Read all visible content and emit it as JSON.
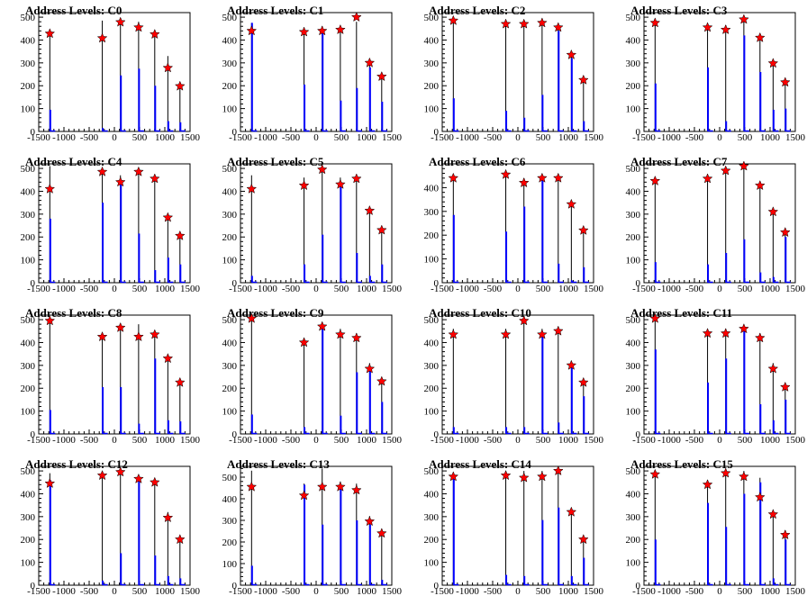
{
  "figure": {
    "xticks": [
      -1500,
      -1000,
      -500,
      0,
      500,
      1000,
      1500
    ],
    "xlim": [
      -1500,
      1500
    ]
  },
  "chart_data": [
    {
      "type": "bar",
      "title": "Address Levels: C0",
      "ylim": [
        0,
        520
      ],
      "yticks": [
        0,
        100,
        200,
        300,
        400,
        500
      ],
      "peaks": [
        -1280,
        -240,
        120,
        480,
        800,
        1060,
        1300
      ],
      "bars_black": [
        430,
        485,
        495,
        480,
        440,
        330,
        200
      ],
      "bars_blue": [
        95,
        15,
        245,
        275,
        200,
        45,
        40
      ],
      "stars": [
        428,
        408,
        478,
        455,
        425,
        278,
        198
      ]
    },
    {
      "type": "bar",
      "title": "Address Levels: C1",
      "ylim": [
        0,
        520
      ],
      "yticks": [
        0,
        100,
        200,
        300,
        400,
        500
      ],
      "peaks": [
        -1280,
        -240,
        120,
        480,
        800,
        1060,
        1300
      ],
      "bars_black": [
        475,
        440,
        460,
        460,
        480,
        300,
        240
      ],
      "bars_blue": [
        475,
        205,
        440,
        135,
        190,
        280,
        130
      ],
      "stars": [
        440,
        435,
        440,
        445,
        500,
        300,
        240
      ]
    },
    {
      "type": "bar",
      "title": "Address Levels: C2",
      "ylim": [
        0,
        520
      ],
      "yticks": [
        0,
        100,
        200,
        300,
        400,
        500
      ],
      "peaks": [
        -1280,
        -240,
        120,
        480,
        800,
        1060,
        1300
      ],
      "bars_black": [
        490,
        470,
        480,
        490,
        460,
        340,
        230
      ],
      "bars_blue": [
        145,
        90,
        60,
        160,
        440,
        320,
        45
      ],
      "stars": [
        485,
        470,
        470,
        475,
        455,
        335,
        225
      ]
    },
    {
      "type": "bar",
      "title": "Address Levels: C3",
      "ylim": [
        0,
        520
      ],
      "yticks": [
        0,
        100,
        200,
        300,
        400,
        500
      ],
      "peaks": [
        -1280,
        -240,
        120,
        480,
        800,
        1060,
        1300
      ],
      "bars_black": [
        480,
        470,
        465,
        490,
        420,
        300,
        225
      ],
      "bars_blue": [
        210,
        280,
        45,
        420,
        260,
        95,
        100
      ],
      "stars": [
        475,
        455,
        445,
        490,
        410,
        298,
        215
      ]
    },
    {
      "type": "bar",
      "title": "Address Levels: C4",
      "ylim": [
        0,
        520
      ],
      "yticks": [
        0,
        100,
        200,
        300,
        400,
        500
      ],
      "peaks": [
        -1280,
        -240,
        120,
        480,
        800,
        1060,
        1300
      ],
      "bars_black": [
        510,
        490,
        470,
        480,
        470,
        300,
        220
      ],
      "bars_blue": [
        280,
        350,
        450,
        215,
        55,
        110,
        80
      ],
      "stars": [
        410,
        485,
        440,
        485,
        455,
        285,
        205
      ]
    },
    {
      "type": "bar",
      "title": "Address Levels: C5",
      "ylim": [
        0,
        520
      ],
      "yticks": [
        0,
        100,
        200,
        300,
        400,
        500
      ],
      "peaks": [
        -1280,
        -240,
        120,
        480,
        800,
        1060,
        1300
      ],
      "bars_black": [
        470,
        460,
        500,
        460,
        470,
        320,
        240
      ],
      "bars_blue": [
        30,
        80,
        210,
        440,
        130,
        30,
        80
      ],
      "stars": [
        410,
        425,
        495,
        430,
        455,
        315,
        230
      ]
    },
    {
      "type": "bar",
      "title": "Address Levels: C6",
      "ylim": [
        0,
        500
      ],
      "yticks": [
        0,
        100,
        200,
        300,
        400
      ],
      "peaks": [
        -1280,
        -240,
        120,
        480,
        800,
        1060,
        1300
      ],
      "bars_black": [
        450,
        460,
        440,
        450,
        450,
        340,
        230
      ],
      "bars_blue": [
        285,
        215,
        320,
        440,
        80,
        10,
        65
      ],
      "stars": [
        440,
        455,
        420,
        440,
        440,
        330,
        220
      ]
    },
    {
      "type": "bar",
      "title": "Address Levels: C7",
      "ylim": [
        0,
        520
      ],
      "yticks": [
        0,
        100,
        200,
        300,
        400,
        500
      ],
      "peaks": [
        -1280,
        -240,
        120,
        480,
        800,
        1060,
        1300
      ],
      "bars_black": [
        460,
        470,
        500,
        510,
        440,
        310,
        225
      ],
      "bars_blue": [
        90,
        80,
        130,
        190,
        45,
        25,
        200
      ],
      "stars": [
        445,
        455,
        490,
        510,
        425,
        310,
        220
      ]
    },
    {
      "type": "bar",
      "title": "Address Levels: C8",
      "ylim": [
        0,
        520
      ],
      "yticks": [
        0,
        100,
        200,
        300,
        400,
        500
      ],
      "peaks": [
        -1280,
        -240,
        120,
        480,
        800,
        1060,
        1300
      ],
      "bars_black": [
        505,
        440,
        480,
        480,
        440,
        330,
        235
      ],
      "bars_blue": [
        105,
        205,
        205,
        45,
        330,
        60,
        55
      ],
      "stars": [
        495,
        425,
        465,
        425,
        435,
        330,
        225
      ]
    },
    {
      "type": "bar",
      "title": "Address Levels: C9",
      "ylim": [
        0,
        520
      ],
      "yticks": [
        0,
        100,
        200,
        300,
        400,
        500
      ],
      "peaks": [
        -1280,
        -240,
        120,
        480,
        800,
        1060,
        1300
      ],
      "bars_black": [
        510,
        420,
        490,
        460,
        440,
        310,
        240
      ],
      "bars_blue": [
        85,
        30,
        460,
        80,
        270,
        280,
        140
      ],
      "stars": [
        505,
        400,
        470,
        435,
        420,
        285,
        230
      ]
    },
    {
      "type": "bar",
      "title": "Address Levels: C10",
      "ylim": [
        0,
        520
      ],
      "yticks": [
        0,
        100,
        200,
        300,
        400,
        500
      ],
      "peaks": [
        -1280,
        -240,
        120,
        480,
        800,
        1060,
        1300
      ],
      "bars_black": [
        460,
        460,
        500,
        460,
        470,
        320,
        240
      ],
      "bars_blue": [
        30,
        30,
        30,
        440,
        50,
        290,
        165
      ],
      "stars": [
        435,
        435,
        495,
        435,
        450,
        300,
        225
      ]
    },
    {
      "type": "bar",
      "title": "Address Levels: C11",
      "ylim": [
        0,
        520
      ],
      "yticks": [
        0,
        100,
        200,
        300,
        400,
        500
      ],
      "peaks": [
        -1280,
        -240,
        120,
        480,
        800,
        1060,
        1300
      ],
      "bars_black": [
        510,
        460,
        460,
        470,
        440,
        310,
        215
      ],
      "bars_blue": [
        370,
        225,
        330,
        460,
        130,
        60,
        150
      ],
      "stars": [
        505,
        440,
        440,
        460,
        420,
        285,
        205
      ]
    },
    {
      "type": "bar",
      "title": "Address Levels: C12",
      "ylim": [
        0,
        520
      ],
      "yticks": [
        0,
        100,
        200,
        300,
        400,
        500
      ],
      "peaks": [
        -1280,
        -240,
        120,
        480,
        800,
        1060,
        1300
      ],
      "bars_black": [
        490,
        480,
        510,
        470,
        460,
        320,
        210
      ],
      "bars_blue": [
        460,
        20,
        140,
        460,
        130,
        40,
        30
      ],
      "stars": [
        445,
        480,
        495,
        465,
        450,
        295,
        200
      ]
    },
    {
      "type": "bar",
      "title": "Address Levels: C13",
      "ylim": [
        0,
        550
      ],
      "yticks": [
        0,
        100,
        200,
        300,
        400,
        500
      ],
      "peaks": [
        -1280,
        -240,
        120,
        480,
        800,
        1060,
        1300
      ],
      "bars_black": [
        530,
        470,
        540,
        480,
        470,
        320,
        260
      ],
      "bars_blue": [
        90,
        465,
        280,
        460,
        300,
        280,
        25
      ],
      "stars": [
        455,
        415,
        455,
        455,
        440,
        295,
        240
      ]
    },
    {
      "type": "bar",
      "title": "Address Levels: C14",
      "ylim": [
        0,
        520
      ],
      "yticks": [
        0,
        100,
        200,
        300,
        400,
        500
      ],
      "peaks": [
        -1280,
        -240,
        120,
        480,
        800,
        1060,
        1300
      ],
      "bars_black": [
        490,
        500,
        500,
        500,
        510,
        330,
        210
      ],
      "bars_blue": [
        470,
        45,
        40,
        285,
        340,
        40,
        120
      ],
      "stars": [
        475,
        480,
        470,
        475,
        500,
        320,
        200
      ]
    },
    {
      "type": "bar",
      "title": "Address Levels: C15",
      "ylim": [
        0,
        520
      ],
      "yticks": [
        0,
        100,
        200,
        300,
        400,
        500
      ],
      "peaks": [
        -1280,
        -240,
        120,
        480,
        800,
        1060,
        1300
      ],
      "bars_black": [
        490,
        460,
        510,
        500,
        470,
        320,
        240
      ],
      "bars_blue": [
        200,
        360,
        255,
        400,
        450,
        30,
        200
      ],
      "stars": [
        485,
        440,
        490,
        475,
        385,
        310,
        220
      ]
    }
  ]
}
